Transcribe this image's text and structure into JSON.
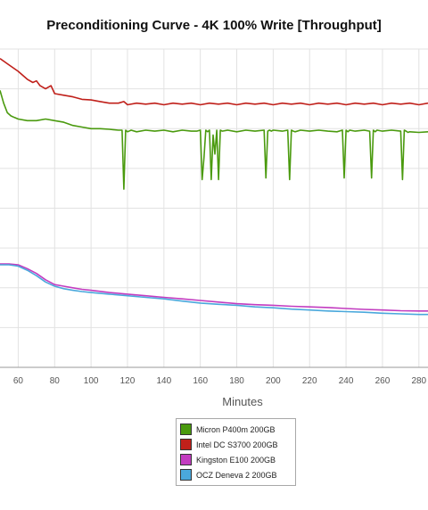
{
  "chart_data": {
    "type": "line",
    "title": "Preconditioning Curve - 4K 100% Write [Throughput]",
    "xlabel": "Minutes",
    "ylabel": "",
    "xlim": [
      50,
      285
    ],
    "ylim": [
      0,
      10
    ],
    "x_ticks": [
      60,
      80,
      100,
      120,
      140,
      160,
      180,
      200,
      220,
      240,
      260,
      280
    ],
    "grid": true,
    "legend_position": "bottom",
    "series": [
      {
        "name": "Micron P400m 200GB",
        "color": "#4a9a0e",
        "x": [
          50,
          52,
          54,
          56,
          58,
          60,
          65,
          70,
          75,
          80,
          85,
          90,
          95,
          100,
          105,
          110,
          115,
          117,
          118,
          119,
          120,
          122,
          125,
          130,
          135,
          140,
          145,
          150,
          155,
          158,
          160,
          161,
          162,
          163,
          164,
          165,
          166,
          167,
          168,
          169,
          170,
          171,
          172,
          175,
          180,
          185,
          190,
          195,
          196,
          197,
          198,
          199,
          200,
          205,
          208,
          209,
          210,
          211,
          212,
          215,
          220,
          225,
          230,
          235,
          238,
          239,
          240,
          241,
          242,
          245,
          250,
          253,
          254,
          255,
          256,
          257,
          260,
          265,
          270,
          271,
          272,
          273,
          274,
          275,
          280,
          285
        ],
        "values": [
          8.7,
          8.3,
          8.0,
          7.9,
          7.85,
          7.8,
          7.75,
          7.75,
          7.8,
          7.75,
          7.7,
          7.6,
          7.55,
          7.5,
          7.5,
          7.48,
          7.45,
          7.45,
          5.6,
          7.45,
          7.4,
          7.45,
          7.4,
          7.45,
          7.42,
          7.45,
          7.4,
          7.45,
          7.42,
          7.42,
          7.45,
          5.9,
          6.6,
          7.45,
          7.4,
          7.45,
          5.9,
          7.3,
          6.7,
          7.45,
          5.9,
          7.45,
          7.42,
          7.45,
          7.4,
          7.45,
          7.42,
          7.45,
          5.95,
          7.42,
          7.45,
          7.42,
          7.45,
          7.42,
          7.45,
          5.9,
          7.45,
          7.42,
          7.4,
          7.45,
          7.42,
          7.45,
          7.42,
          7.4,
          7.45,
          5.95,
          7.45,
          7.4,
          7.45,
          7.42,
          7.45,
          7.42,
          5.95,
          7.45,
          7.4,
          7.45,
          7.42,
          7.45,
          7.42,
          5.9,
          7.45,
          7.42,
          7.38,
          7.4,
          7.38,
          7.4
        ]
      },
      {
        "name": "Intel DC S3700 200GB",
        "color": "#c0201a",
        "x": [
          50,
          55,
          60,
          65,
          68,
          70,
          72,
          75,
          78,
          80,
          85,
          90,
          95,
          100,
          105,
          110,
          115,
          118,
          120,
          125,
          130,
          135,
          140,
          145,
          150,
          155,
          160,
          165,
          170,
          175,
          180,
          185,
          190,
          195,
          200,
          205,
          210,
          215,
          220,
          225,
          230,
          235,
          240,
          245,
          250,
          255,
          260,
          265,
          270,
          275,
          280,
          285
        ],
        "values": [
          9.7,
          9.5,
          9.3,
          9.05,
          8.95,
          9.0,
          8.85,
          8.75,
          8.85,
          8.6,
          8.55,
          8.5,
          8.42,
          8.4,
          8.35,
          8.3,
          8.3,
          8.35,
          8.25,
          8.3,
          8.27,
          8.3,
          8.25,
          8.3,
          8.27,
          8.3,
          8.25,
          8.3,
          8.27,
          8.3,
          8.25,
          8.3,
          8.27,
          8.3,
          8.25,
          8.3,
          8.27,
          8.3,
          8.25,
          8.3,
          8.27,
          8.3,
          8.25,
          8.3,
          8.27,
          8.3,
          8.25,
          8.3,
          8.27,
          8.3,
          8.25,
          8.3
        ]
      },
      {
        "name": "Kingston E100 200GB",
        "color": "#c23cc0",
        "x": [
          50,
          55,
          60,
          65,
          70,
          75,
          80,
          85,
          90,
          95,
          100,
          110,
          120,
          130,
          140,
          150,
          160,
          170,
          180,
          190,
          200,
          210,
          220,
          230,
          240,
          250,
          260,
          270,
          280,
          285
        ],
        "values": [
          3.25,
          3.25,
          3.22,
          3.1,
          2.95,
          2.75,
          2.6,
          2.55,
          2.5,
          2.45,
          2.42,
          2.35,
          2.3,
          2.25,
          2.2,
          2.15,
          2.1,
          2.05,
          2.0,
          1.97,
          1.95,
          1.92,
          1.9,
          1.88,
          1.85,
          1.82,
          1.8,
          1.78,
          1.77,
          1.77
        ]
      },
      {
        "name": "OCZ Deneva 2 200GB",
        "color": "#4aa8dc",
        "x": [
          50,
          55,
          60,
          65,
          70,
          75,
          80,
          85,
          90,
          95,
          100,
          110,
          120,
          130,
          140,
          150,
          160,
          170,
          180,
          190,
          200,
          210,
          220,
          230,
          240,
          250,
          260,
          270,
          280,
          285
        ],
        "values": [
          3.22,
          3.22,
          3.18,
          3.05,
          2.88,
          2.68,
          2.55,
          2.47,
          2.42,
          2.38,
          2.35,
          2.3,
          2.25,
          2.2,
          2.15,
          2.08,
          2.02,
          1.98,
          1.95,
          1.9,
          1.87,
          1.83,
          1.8,
          1.77,
          1.75,
          1.73,
          1.7,
          1.68,
          1.66,
          1.66
        ]
      }
    ]
  }
}
